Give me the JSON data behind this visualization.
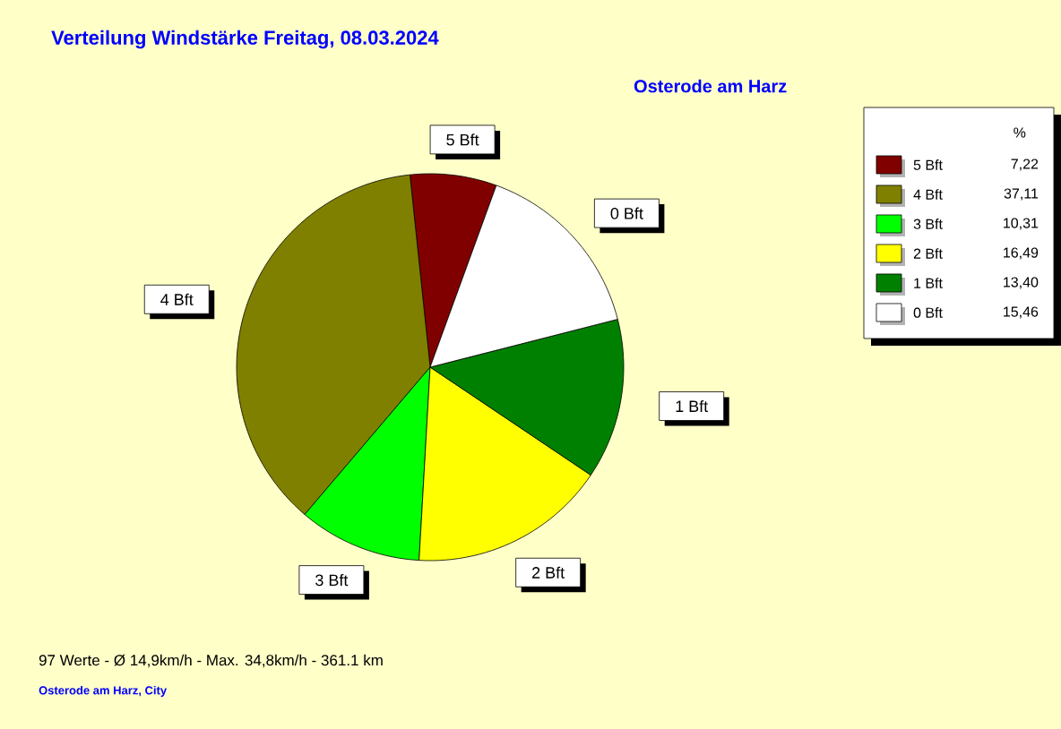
{
  "chart_data": {
    "type": "pie",
    "title": "Verteilung Windstärke  Freitag, 08.03.2024",
    "subtitle": "Osterode am Harz",
    "categories": [
      "5 Bft",
      "4 Bft",
      "3 Bft",
      "2 Bft",
      "1 Bft",
      "0 Bft"
    ],
    "values": [
      7.22,
      37.11,
      10.31,
      16.49,
      13.4,
      15.46
    ],
    "value_labels": [
      "7,22",
      "37,11",
      "10,31",
      "16,49",
      "13,40",
      "15,46"
    ],
    "colors": [
      "#800000",
      "#808000",
      "#00ff00",
      "#ffff00",
      "#008000",
      "#ffffff"
    ],
    "legend": "top right",
    "legend_title": "%",
    "annotations": [
      "97 Werte  -  Ø 14,9km/h  -  Max. 34,8km/h  -  361.1 km",
      "Osterode am Harz, City"
    ]
  }
}
